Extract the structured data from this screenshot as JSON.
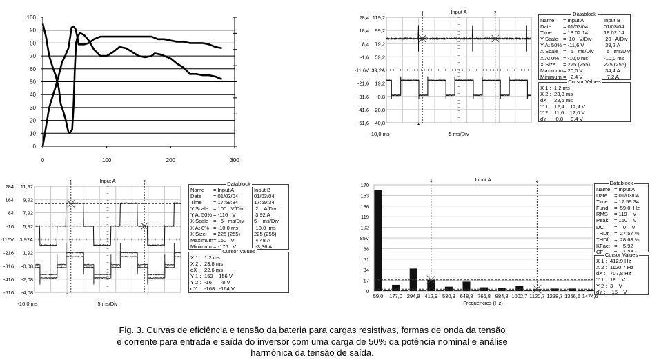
{
  "figure": {
    "caption": [
      "Fig. 3. Curvas de eficiência e tensão da bateria para cargas resistivas, formas de onda da tensão",
      "e corrente para entrada e saída do inversor com uma carga de 50% da potência nominal e análise",
      "harmônica da tensão de saída."
    ]
  },
  "chart_data": [
    {
      "id": "efficiency",
      "type": "line",
      "title": "",
      "xlabel": "",
      "ylabel": "",
      "xlim": [
        0,
        300
      ],
      "ylim": [
        0,
        100
      ],
      "grid": true,
      "xtick_labels": [
        "0",
        "100",
        "200",
        "300"
      ],
      "xticks": [
        0,
        100,
        200,
        300
      ],
      "ytick_labels": [
        "0",
        "10",
        "20",
        "30",
        "40",
        "50",
        "60",
        "70",
        "80",
        "90",
        "100"
      ],
      "yticks": [
        0,
        10,
        20,
        30,
        40,
        50,
        60,
        70,
        80,
        90,
        100
      ],
      "series": [
        {
          "name": "curve-1",
          "x": [
            0,
            5,
            10,
            15,
            20,
            25,
            30,
            35,
            40,
            43,
            45,
            48,
            51,
            54,
            56,
            60,
            65,
            72,
            80,
            90,
            100,
            120,
            140,
            160,
            170,
            180,
            190,
            200,
            210,
            220,
            230,
            250,
            260,
            270,
            280
          ],
          "y": [
            0,
            15,
            30,
            38,
            46,
            55,
            65,
            70,
            76,
            85,
            92,
            93,
            91,
            85,
            79,
            79,
            79,
            80,
            83,
            85,
            85,
            85,
            85,
            85,
            85,
            83,
            83,
            82,
            81,
            81,
            80,
            80,
            79,
            77,
            76
          ]
        },
        {
          "name": "curve-2",
          "x": [
            0,
            5,
            10,
            15,
            20,
            25,
            28,
            32,
            36,
            40,
            42,
            46,
            48,
            50,
            52,
            54,
            58,
            65,
            72,
            80,
            90,
            100,
            110,
            120,
            130,
            140,
            150,
            160,
            170,
            175,
            185,
            200,
            210,
            220,
            230,
            240,
            250,
            260,
            270,
            280
          ],
          "y": [
            95,
            85,
            70,
            62,
            55,
            45,
            33,
            27,
            20,
            11,
            10,
            13,
            30,
            58,
            80,
            84,
            88,
            86,
            82,
            75,
            70,
            70,
            73,
            77,
            76,
            73,
            70,
            69,
            70,
            72,
            71,
            68,
            64,
            61,
            56,
            56,
            55,
            55,
            54,
            52
          ]
        }
      ]
    },
    {
      "id": "scope-input",
      "type": "line",
      "title": "Input A",
      "x_start_label": "-10,0 ms",
      "x_scale_label": "5 ms/Div",
      "xlim": [
        -10,
        35
      ],
      "left_ylim": [
        -51.6,
        28.4
      ],
      "right_ylim": [
        -40.8,
        119.2
      ],
      "left_tick_labels": [
        "28,4",
        "18,4",
        "8,4",
        "-1,6",
        "-11,6V",
        "-21,6",
        "-31,6",
        "-41,6",
        "-51,6"
      ],
      "right_tick_labels": [
        "119,2",
        "99,2",
        "79,2",
        "59,2",
        "39,2A",
        "19,2",
        "-0,8",
        "-20,8",
        "-40,8"
      ],
      "cursors": [
        {
          "label": "1",
          "t": 1.2
        },
        {
          "label": "2",
          "t": 23.8
        }
      ],
      "h_cursors": [],
      "traces": [
        {
          "name": "voltage-a",
          "axis": "left",
          "color": "#888888",
          "period": 100,
          "t0": -10,
          "segments": [
            [
              1,
              12.0
            ]
          ],
          "spikes": [
            0,
            16.8,
            33.6
          ],
          "spike_amp": 8,
          "noise": 0.5
        },
        {
          "name": "voltage-b",
          "axis": "left",
          "color": "#111111",
          "period": 100,
          "t0": -10,
          "segments": [
            [
              1,
              12.4
            ]
          ],
          "spikes": [
            0,
            16.8,
            33.6
          ],
          "spike_amp": 10,
          "noise": 0.4
        },
        {
          "name": "current-a",
          "axis": "right",
          "color": "#888888",
          "period": 8.45,
          "t0": 0,
          "segments": [
            [
              0.33,
              1.5
            ],
            [
              0.67,
              24
            ]
          ],
          "overshoot": 4,
          "noise": 0.6
        },
        {
          "name": "current-b",
          "axis": "right",
          "color": "#111111",
          "period": 8.45,
          "t0": 0,
          "segments": [
            [
              0.33,
              0.8
            ],
            [
              0.67,
              23.5
            ]
          ],
          "overshoot": 6,
          "noise": 0.5
        }
      ]
    },
    {
      "id": "scope-output",
      "type": "line",
      "title": "Input A",
      "x_start_label": "-10,0 ms",
      "x_scale_label": "5 ms/Div",
      "xlim": [
        -10,
        35
      ],
      "left_ylim": [
        -516,
        284
      ],
      "right_ylim": [
        -4.08,
        11.92
      ],
      "left_tick_labels": [
        "284",
        "184",
        "84",
        "-16",
        "-116V",
        "-216",
        "-316",
        "-416",
        "-516"
      ],
      "right_tick_labels": [
        "11,92",
        "9,92",
        "7,92",
        "5,92",
        "3,92A",
        "1,92",
        "-0,08",
        "-2,08",
        "-4,08"
      ],
      "cursors": [
        {
          "label": "1",
          "t": 1.2
        },
        {
          "label": "2",
          "t": 23.8
        }
      ],
      "h_cursors": [
        152,
        -16
      ],
      "traces": [
        {
          "name": "voltage",
          "axis": "left",
          "color": "#111111",
          "period": 16.6,
          "t0": -0.3,
          "segments": [
            [
              0.32,
              156
            ],
            [
              0.19,
              -16
            ],
            [
              0.32,
              -160
            ],
            [
              0.17,
              -16
            ]
          ],
          "overshoot": 0,
          "noise": 3
        },
        {
          "name": "current-a",
          "axis": "right",
          "color": "#333333",
          "period": 16.6,
          "t0": -0.3,
          "segments": [
            [
              0.32,
              1.9
            ],
            [
              0.19,
              0.1
            ],
            [
              0.32,
              -1.4
            ],
            [
              0.17,
              0.1
            ]
          ],
          "overshoot": 1.5,
          "noise": 0.06
        },
        {
          "name": "current-b",
          "axis": "right",
          "color": "#333333",
          "period": 16.6,
          "t0": -0.3,
          "segments": [
            [
              0.32,
              1.3
            ],
            [
              0.19,
              -0.3
            ],
            [
              0.32,
              -1.9
            ],
            [
              0.17,
              -0.3
            ]
          ],
          "overshoot": 0.8,
          "noise": 0.06
        }
      ]
    },
    {
      "id": "spectrum",
      "type": "bar",
      "title": "Input A",
      "xlabel": "Frequencies (Hz)",
      "ylabel": "",
      "ylim": [
        0,
        170
      ],
      "ytick_labels": [
        "0",
        "17",
        "34",
        "51",
        "68",
        "85V",
        "102",
        "119",
        "136",
        "153",
        "170"
      ],
      "categories": [
        "59,0",
        "177,0",
        "294,9",
        "412,9",
        "530,9",
        "648,8",
        "766,8",
        "884,8",
        "1002,7",
        "1120,7",
        "1238,7",
        "1356,6",
        "1474,6"
      ],
      "values": [
        162,
        10,
        36,
        18,
        7,
        15,
        6,
        5,
        8,
        3,
        4,
        4,
        2
      ],
      "intermediate_values": [
        1.5,
        1.5,
        1,
        1.5,
        1,
        1.5,
        1,
        1.5,
        1.5,
        1,
        1,
        1.5
      ],
      "cursors": [
        {
          "label": "1",
          "index": 3
        },
        {
          "label": "2",
          "index": 9
        }
      ],
      "h_cursors": [
        18,
        3
      ]
    }
  ],
  "datablocks": {
    "scope_input": {
      "title": "Datablock",
      "rows": [
        [
          "Name",
          "= Input A",
          "Input B"
        ],
        [
          "Date",
          "= 01/03/04",
          "01/03/04"
        ],
        [
          "Time",
          "= 18:02:14",
          "18:02:14"
        ],
        [
          "Y Scale",
          "=  10   V/Div",
          " 20   A/Div"
        ],
        [
          "Y At 50%",
          "= -11,6 V",
          " 39,2 A"
        ],
        [
          "X Scale",
          "=   5   ms/Div",
          "  5   ms/Div"
        ],
        [
          "X At 0%",
          "= -10,0 ms",
          "-10,0 ms"
        ],
        [
          "X Size",
          "= 225 (255)",
          "225 (255)"
        ],
        [
          "Maximum",
          "= 20,0 V",
          " 34,4 A"
        ],
        [
          "Minimum",
          "=   2,4 V",
          " -7,2 A"
        ]
      ],
      "cursor_title": "Cursor Values",
      "cursor_rows": [
        [
          "X 1 :",
          "1,2 ms"
        ],
        [
          "X 2 :",
          "23,8 ms"
        ],
        [
          "dX :",
          "22,6 ms"
        ],
        [
          "Y 1 :",
          "12,4    12,4 V"
        ],
        [
          "Y 2 :",
          "11,6    12,0 V"
        ],
        [
          "dY :",
          "-0,8    -0,4 V"
        ]
      ]
    },
    "scope_output": {
      "title": "Datablock",
      "rows": [
        [
          "Name",
          "= Input A",
          "Input B"
        ],
        [
          "Date",
          "= 01/03/04",
          "01/03/04"
        ],
        [
          "Time",
          "= 17:59:34",
          "17:59:34"
        ],
        [
          "Y Scale",
          "= 100   V/Div",
          " 2    A/Div"
        ],
        [
          "Y At 50%",
          "= -116   V",
          " 3,92 A"
        ],
        [
          "X Scale",
          "=   5   ms/Div",
          "5    ms/Div"
        ],
        [
          "X At 0%",
          "= -10,0 ms",
          "-10,0  ms"
        ],
        [
          "X Size",
          "= 225 (255)",
          "225 (255)"
        ],
        [
          "Maximum",
          "= 160   V",
          " 4,48 A"
        ],
        [
          "Minimum",
          "= -176   V",
          " -3,36 A"
        ]
      ],
      "cursor_title": "Cursor Values",
      "cursor_rows": [
        [
          "X 1 :",
          "1,2 ms"
        ],
        [
          "X 2 :",
          "23,8 ms"
        ],
        [
          "dX :",
          "22,6 ms"
        ],
        [
          "Y 1 :",
          "152    156 V"
        ],
        [
          "Y 2 :",
          "-16      -8 V"
        ],
        [
          "dY :",
          "-168   -164 V"
        ]
      ]
    },
    "spectrum": {
      "title": "Datablock",
      "rows": [
        [
          "Name",
          "= Input A"
        ],
        [
          "Date",
          "= 01/03/04"
        ],
        [
          "Time",
          "= 17:59:34"
        ],
        [
          "Fund",
          "=  59,0  Hz"
        ],
        [
          "RMS",
          "= 119    V"
        ],
        [
          "Peak",
          "= 160    V"
        ],
        [
          "DC",
          "=    0    V"
        ],
        [
          "THDr",
          "=  27,57 %"
        ],
        [
          "THDf",
          "=  28,68 %"
        ],
        [
          "KFact",
          "=    5,92"
        ],
        [
          "CF",
          "=    1,34"
        ]
      ],
      "cursor_title": "Cursor Values",
      "cursor_rows": [
        [
          "X 1 :",
          "412,9 Hz"
        ],
        [
          "X 2 :",
          "1120,7 Hz"
        ],
        [
          "dX :",
          "707,8 Hz"
        ],
        [
          "Y 1 :",
          "18    V"
        ],
        [
          "Y 2 :",
          "3    V"
        ],
        [
          "dY :",
          "-15    V"
        ]
      ]
    }
  }
}
